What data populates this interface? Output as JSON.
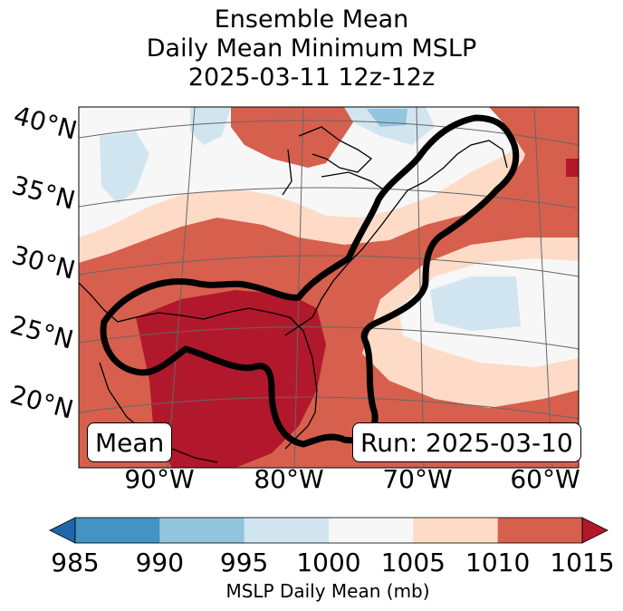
{
  "title_lines": [
    "Ensemble Mean",
    "Daily Mean Minimum MSLP",
    "2025-03-11 12z-12z"
  ],
  "chart_data": {
    "type": "heatmap",
    "title": "Ensemble Mean Daily Mean Minimum MSLP 2025-03-11 12z-12z",
    "lat_ticks": [
      "40°N",
      "35°N",
      "30°N",
      "25°N",
      "20°N"
    ],
    "lon_ticks": [
      "90°W",
      "80°W",
      "70°W",
      "60°W"
    ],
    "lon_range": [
      -97,
      -59
    ],
    "lat_range": [
      17,
      42
    ],
    "mean_label": "Mean",
    "run_label": "Run: 2025-03-10",
    "colorbar": {
      "label": "MSLP Daily Mean (mb)",
      "ticks": [
        "985",
        "990",
        "995",
        "1000",
        "1005",
        "1010",
        "1015"
      ],
      "levels": [
        985,
        990,
        995,
        1000,
        1005,
        1010,
        1015
      ],
      "colors": [
        "#2166ac",
        "#4393c3",
        "#92c5de",
        "#d1e5f0",
        "#f7f7f7",
        "#fddbc7",
        "#d6604d",
        "#b2182b"
      ],
      "extend": "both"
    }
  }
}
